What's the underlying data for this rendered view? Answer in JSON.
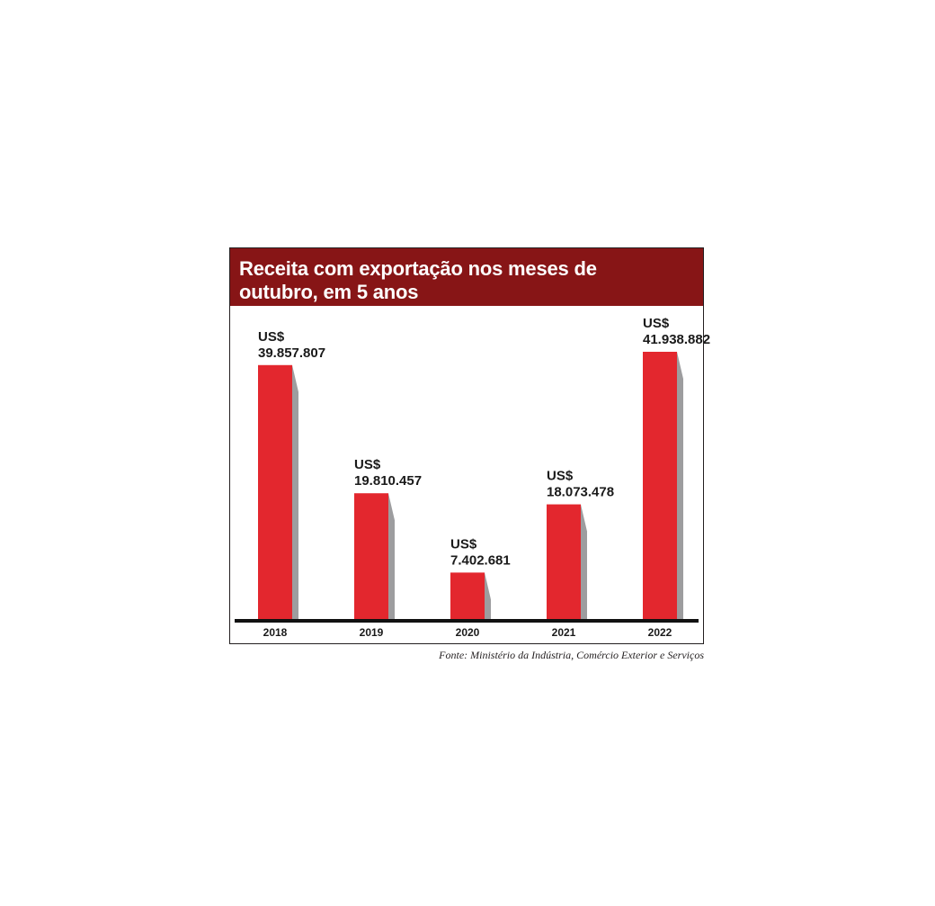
{
  "chart_data": {
    "type": "bar",
    "title": "Receita com exportação nos meses de outubro, em 5 anos",
    "categories": [
      "2018",
      "2019",
      "2020",
      "2021",
      "2022"
    ],
    "series": [
      {
        "values": [
          39857807,
          19810457,
          7402681,
          18073478,
          41938882
        ],
        "value_labels": [
          "39.857.807",
          "19.810.457",
          "7.402.681",
          "18.073.478",
          "41.938.882"
        ]
      }
    ],
    "value_prefix": "US$",
    "ylim": [
      0,
      50000000
    ],
    "grid": false,
    "source": "Fonte: Ministério da Indústria, Comércio Exterior e Serviços"
  },
  "colors": {
    "title_bar": "#871516",
    "bar": "#e3272e",
    "bar_shadow": "#9d9d9f",
    "axis": "#111111"
  }
}
